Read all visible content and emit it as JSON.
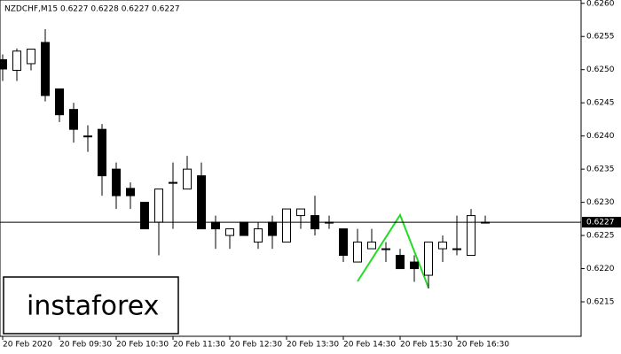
{
  "chart_data": {
    "type": "candlestick",
    "title": "NZDCHF,M15  0.6227 0.6228 0.6227 0.6227",
    "logo": "instaforex",
    "categories": [
      "20 Feb 2020",
      null,
      null,
      null,
      "20 Feb 09:30",
      null,
      null,
      null,
      "20 Feb 10:30",
      null,
      null,
      null,
      "20 Feb 11:30",
      null,
      null,
      null,
      "20 Feb 12:30",
      null,
      null,
      null,
      "20 Feb 13:30",
      null,
      null,
      null,
      "20 Feb 14:30",
      null,
      null,
      null,
      "20 Feb 15:30",
      null,
      null,
      null,
      "20 Feb 16:30",
      null,
      null
    ],
    "open": [
      0.62515,
      0.62499,
      0.62509,
      0.62541,
      0.62471,
      0.6244,
      0.624,
      0.6241,
      0.6235,
      0.62321,
      0.623,
      0.6227,
      0.6233,
      0.6232,
      0.6234,
      0.6227,
      0.6225,
      0.6227,
      0.6224,
      0.6227,
      0.6224,
      0.6228,
      0.6228,
      0.6227,
      0.6226,
      0.6221,
      0.6223,
      0.6223,
      0.6222,
      0.6221,
      0.6219,
      0.6223,
      0.6223,
      0.6222,
      0.6227
    ],
    "high": [
      0.62523,
      0.62532,
      0.62531,
      0.62561,
      0.62471,
      0.6245,
      0.62416,
      0.62418,
      0.6236,
      0.6233,
      0.623,
      0.6232,
      0.6236,
      0.6237,
      0.6236,
      0.6228,
      0.6226,
      0.6227,
      0.6227,
      0.6228,
      0.6229,
      0.6229,
      0.6231,
      0.6228,
      0.6226,
      0.6226,
      0.6226,
      0.6224,
      0.6223,
      0.6222,
      0.6224,
      0.6225,
      0.6228,
      0.6229,
      0.6228
    ],
    "low": [
      0.62483,
      0.62483,
      0.62499,
      0.62452,
      0.62421,
      0.6239,
      0.62376,
      0.6231,
      0.6229,
      0.6229,
      0.6226,
      0.6222,
      0.6226,
      0.6232,
      0.6226,
      0.6223,
      0.6223,
      0.6225,
      0.6223,
      0.6223,
      0.6224,
      0.6226,
      0.6225,
      0.6226,
      0.6221,
      0.6221,
      0.6223,
      0.6221,
      0.622,
      0.6218,
      0.6217,
      0.6221,
      0.6222,
      0.6222,
      0.6227
    ],
    "close": [
      0.62501,
      0.62528,
      0.62531,
      0.62461,
      0.62432,
      0.6241,
      0.624,
      0.6234,
      0.6231,
      0.6231,
      0.6226,
      0.6232,
      0.6233,
      0.6235,
      0.6226,
      0.6226,
      0.6226,
      0.6225,
      0.6226,
      0.6225,
      0.6229,
      0.6229,
      0.6226,
      0.6227,
      0.6222,
      0.6224,
      0.6224,
      0.6223,
      0.622,
      0.622,
      0.6224,
      0.6224,
      0.6223,
      0.6228,
      0.6227
    ],
    "up_color": "#ffffff",
    "down_color": "#000000",
    "ylim": [
      0.62098,
      0.62605
    ],
    "yticks": [
      {
        "value": 0.626,
        "label": "0.6260"
      },
      {
        "value": 0.6255,
        "label": "0.6255"
      },
      {
        "value": 0.625,
        "label": "0.6250"
      },
      {
        "value": 0.6245,
        "label": "0.6245"
      },
      {
        "value": 0.624,
        "label": "0.6240"
      },
      {
        "value": 0.6235,
        "label": "0.6235"
      },
      {
        "value": 0.623,
        "label": "0.6230"
      },
      {
        "value": 0.6225,
        "label": "0.6225"
      },
      {
        "value": 0.622,
        "label": "0.6220"
      },
      {
        "value": 0.6215,
        "label": "0.6215"
      }
    ],
    "last_price": {
      "value": 0.6227,
      "label": "0.6227"
    }
  }
}
